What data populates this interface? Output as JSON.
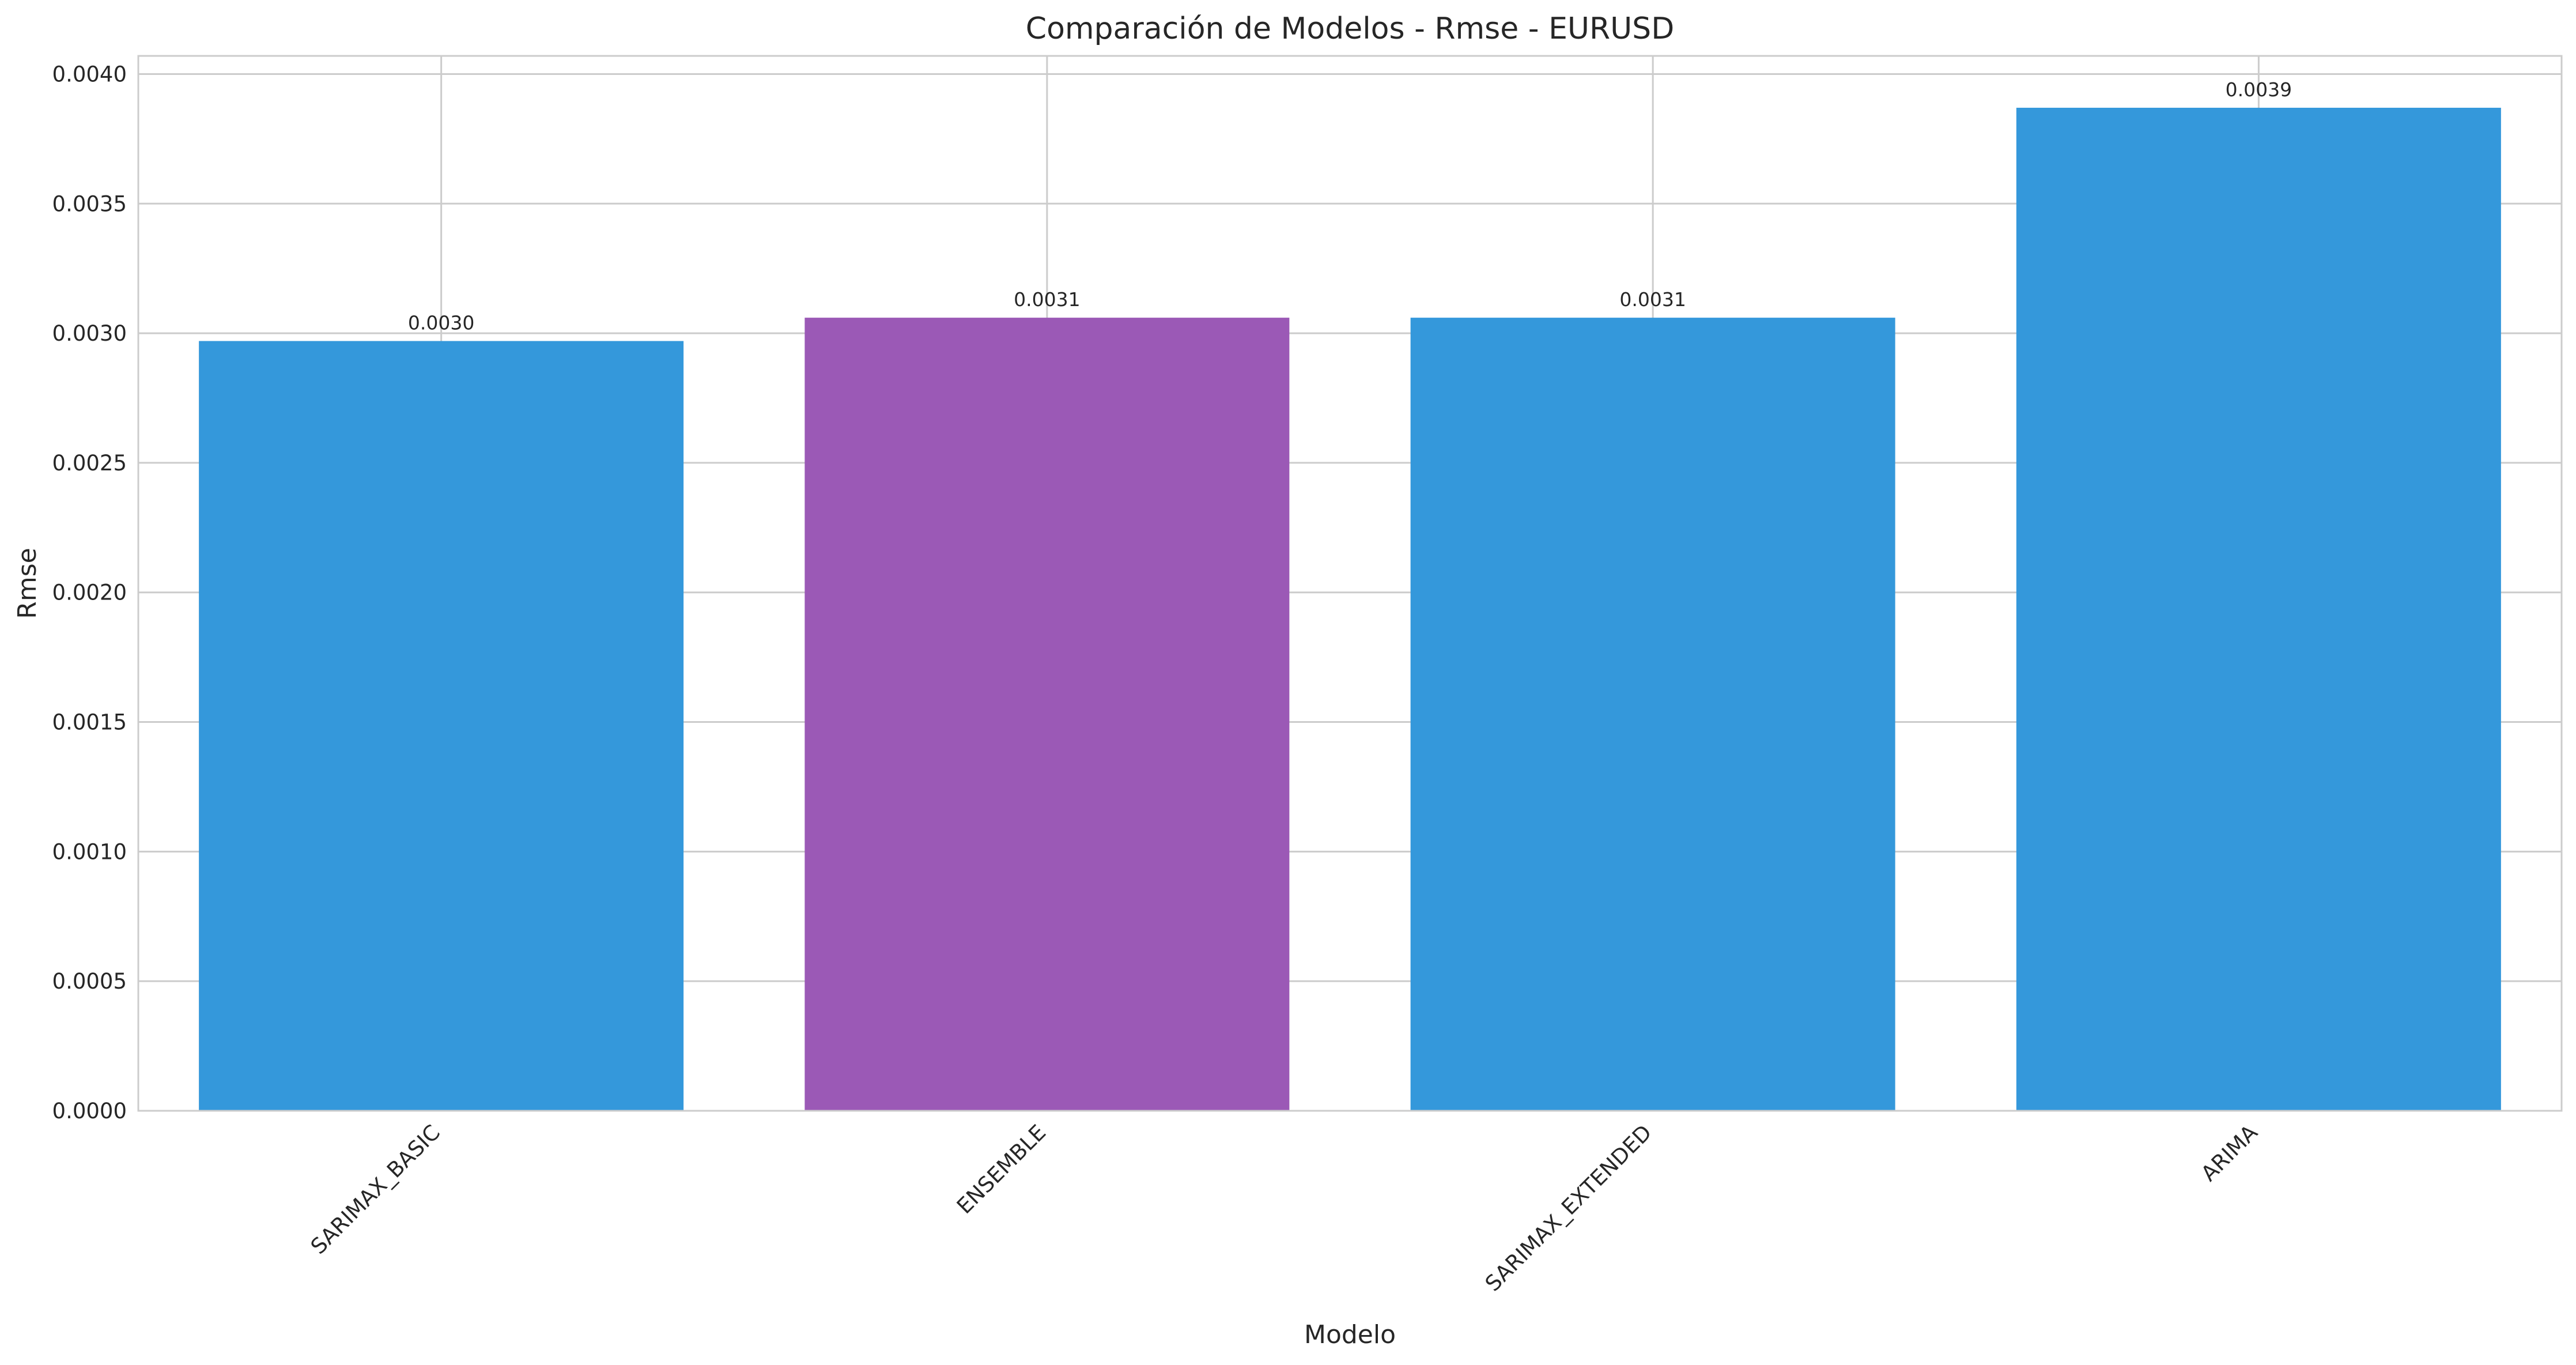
{
  "chart_data": {
    "type": "bar",
    "title": "Comparación de Modelos - Rmse - EURUSD",
    "xlabel": "Modelo",
    "ylabel": "Rmse",
    "categories": [
      "SARIMAX_BASIC",
      "ENSEMBLE",
      "SARIMAX_EXTENDED",
      "ARIMA"
    ],
    "values": [
      0.00297,
      0.00306,
      0.00306,
      0.00387
    ],
    "value_labels": [
      "0.0030",
      "0.0031",
      "0.0031",
      "0.0039"
    ],
    "bar_colors": [
      "#3498db",
      "#9b59b6",
      "#3498db",
      "#3498db"
    ],
    "ylim": [
      0,
      0.00407
    ],
    "yticks": [
      0,
      0.0005,
      0.001,
      0.0015,
      0.002,
      0.0025,
      0.003,
      0.0035,
      0.004
    ],
    "ytick_labels": [
      "0.0000",
      "0.0005",
      "0.0010",
      "0.0015",
      "0.0020",
      "0.0025",
      "0.0030",
      "0.0035",
      "0.0040"
    ],
    "grid": true,
    "xtick_rotation_deg": 45
  }
}
